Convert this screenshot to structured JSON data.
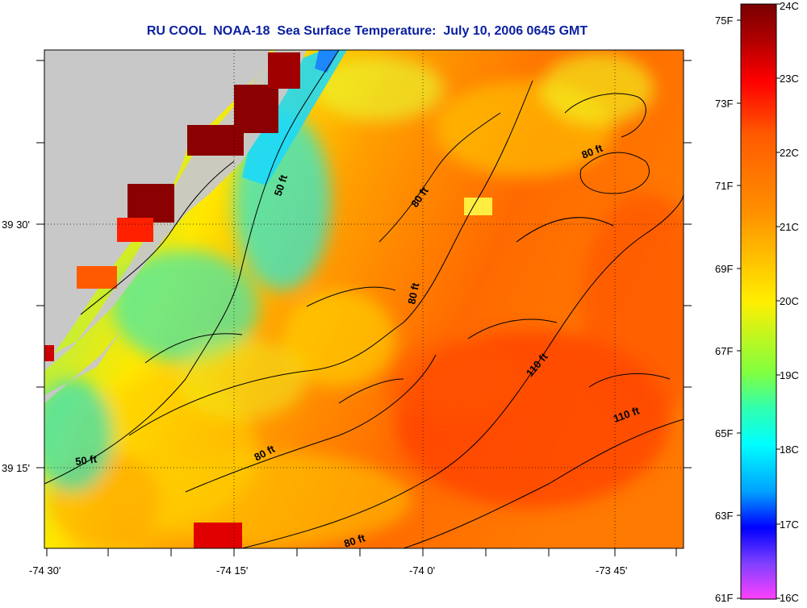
{
  "title": "RU COOL  NOAA-18  Sea Surface Temperature:  July 10, 2006 0645 GMT",
  "lat_labels": [
    "39 30'",
    "39 15'"
  ],
  "lon_labels": [
    "-74 30'",
    "-74 15'",
    "-74 0'",
    "-73 45'"
  ],
  "contour_labels": {
    "c50_north": "50 ft",
    "c50_south": "50 ft",
    "c80_a": "80 ft",
    "c80_b": "80 ft",
    "c80_c": "80 ft",
    "c80_d": "80 ft",
    "c80_e": "80 ft",
    "c110_a": "110 ft",
    "c110_b": "110 ft"
  },
  "colorbar": {
    "fahrenheit": [
      "75F",
      "73F",
      "71F",
      "69F",
      "67F",
      "65F",
      "63F",
      "61F"
    ],
    "celsius": [
      "24C",
      "23C",
      "22C",
      "21C",
      "20C",
      "19C",
      "18C",
      "17C",
      "16C"
    ]
  },
  "colors": {
    "title": "#0a1fa0",
    "land": "#c8c8c8",
    "warm_max": "#8b0000",
    "cool": "#20e0ff"
  }
}
